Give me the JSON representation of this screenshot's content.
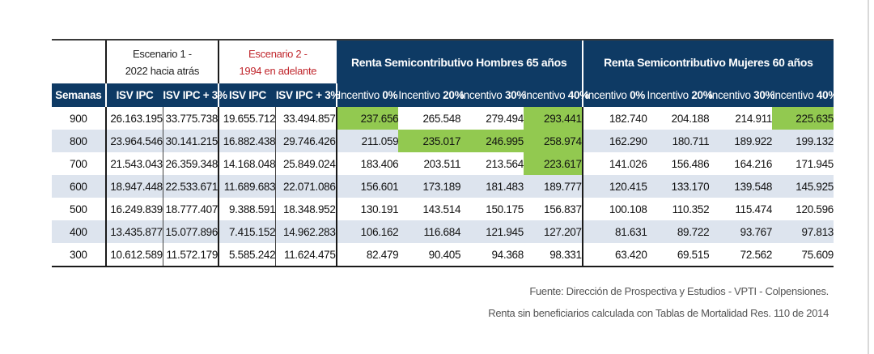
{
  "header": {
    "escenario1": {
      "line1": "Escenario 1 -",
      "line2": "2022 hacia atrás"
    },
    "escenario2": {
      "line1": "Escenario 2 -",
      "line2": "1994 en adelante"
    },
    "group_hombres": "Renta Semicontributivo Hombres 65 años",
    "group_mujeres": "Renta Semicontributivo Mujeres 60 años"
  },
  "columns": {
    "semanas": "Semanas",
    "isv1": "ISV IPC",
    "isv1_plus": "ISV IPC + 3%",
    "isv2": "ISV IPC",
    "isv2_plus": "ISV IPC + 3%",
    "incentive_word": "Incentivo",
    "h": [
      "0%",
      "20%",
      "30%",
      "40%"
    ],
    "m": [
      "0%",
      "20%",
      "30%",
      "40%"
    ]
  },
  "rows": [
    {
      "semanas": "900",
      "values": [
        "26.163.195",
        "33.775.738",
        "19.655.712",
        "33.494.857",
        "237.656",
        "265.548",
        "279.494",
        "293.441",
        "182.740",
        "204.188",
        "214.911",
        "225.635"
      ]
    },
    {
      "semanas": "800",
      "values": [
        "23.964.546",
        "30.141.215",
        "16.882.438",
        "29.746.426",
        "211.059",
        "235.017",
        "246.995",
        "258.974",
        "162.290",
        "180.711",
        "189.922",
        "199.132"
      ]
    },
    {
      "semanas": "700",
      "values": [
        "21.543.043",
        "26.359.348",
        "14.168.048",
        "25.849.024",
        "183.406",
        "203.511",
        "213.564",
        "223.617",
        "141.026",
        "156.486",
        "164.216",
        "171.945"
      ]
    },
    {
      "semanas": "600",
      "values": [
        "18.947.448",
        "22.533.671",
        "11.689.683",
        "22.071.086",
        "156.601",
        "173.189",
        "181.483",
        "189.777",
        "120.415",
        "133.170",
        "139.548",
        "145.925"
      ]
    },
    {
      "semanas": "500",
      "values": [
        "16.249.839",
        "18.777.407",
        "9.388.591",
        "18.348.952",
        "130.191",
        "143.514",
        "150.175",
        "156.837",
        "100.108",
        "110.352",
        "115.474",
        "120.596"
      ]
    },
    {
      "semanas": "400",
      "values": [
        "13.435.877",
        "15.077.896",
        "7.415.152",
        "14.962.283",
        "106.162",
        "116.684",
        "121.945",
        "127.207",
        "81.631",
        "89.722",
        "93.767",
        "97.813"
      ]
    },
    {
      "semanas": "300",
      "values": [
        "10.612.589",
        "11.572.179",
        "5.585.242",
        "11.624.475",
        "82.479",
        "90.405",
        "94.368",
        "98.331",
        "63.420",
        "69.515",
        "72.562",
        "75.609"
      ]
    }
  ],
  "colors": {
    "header_blue": "#0e3a64",
    "highlight_green": "#92c950",
    "row_shade": "#dde4ee",
    "scenario2_red": "#c0272d"
  },
  "notes": {
    "source": "Fuente: Dirección de Prospectiva y Estudios - VPTI - Colpensiones.",
    "mortality": "Renta sin beneficiarios calculada con Tablas de Mortalidad Res. 110 de 2014"
  }
}
